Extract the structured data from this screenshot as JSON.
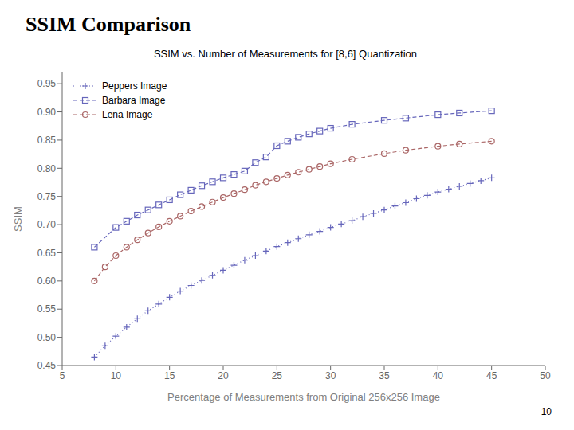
{
  "chart_data": {
    "type": "line",
    "title": "SSIM Comparison",
    "subtitle": "SSIM vs. Number of Measurements for [8,6] Quantization",
    "annotations": [
      "10"
    ],
    "xlabel": "Percentage of Measurements from Original 256x256 Image",
    "ylabel": "SSIM",
    "xlim": [
      5,
      50
    ],
    "ylim": [
      0.45,
      0.97
    ],
    "xticks": [
      5,
      10,
      15,
      20,
      25,
      30,
      35,
      40,
      45,
      50
    ],
    "yticks": [
      0.45,
      {
        "value": 0.5,
        "label": "0.50"
      },
      0.55,
      {
        "value": 0.6,
        "label": "0.60"
      },
      0.65,
      {
        "value": 0.7,
        "label": "0.70"
      },
      0.75,
      {
        "value": 0.8,
        "label": "0.80"
      },
      0.85,
      {
        "value": 0.9,
        "label": "0.90"
      },
      0.95
    ],
    "grid": false,
    "legend": "upper left",
    "series": [
      {
        "name": "Peppers Image",
        "color": "#6666bb",
        "marker": "plus",
        "line_style": "dotted",
        "x": [
          8,
          9,
          10,
          11,
          12,
          13,
          14,
          15,
          16,
          17,
          18,
          19,
          20,
          21,
          22,
          23,
          24,
          25,
          26,
          27,
          28,
          29,
          30,
          31,
          32,
          33,
          34,
          35,
          36,
          37,
          38,
          39,
          40,
          41,
          42,
          43,
          44,
          45
        ],
        "values": [
          0.465,
          0.485,
          0.502,
          0.518,
          0.533,
          0.547,
          0.559,
          0.571,
          0.582,
          0.592,
          0.601,
          0.61,
          0.619,
          0.628,
          0.637,
          0.645,
          0.653,
          0.661,
          0.668,
          0.675,
          0.682,
          0.688,
          0.695,
          0.701,
          0.707,
          0.714,
          0.72,
          0.726,
          0.733,
          0.739,
          0.746,
          0.752,
          0.758,
          0.763,
          0.768,
          0.773,
          0.778,
          0.783
        ]
      },
      {
        "name": "Barbara Image",
        "color": "#6666bb",
        "marker": "square",
        "line_style": "dashed",
        "x": [
          8,
          10,
          11,
          12,
          13,
          14,
          15,
          16,
          17,
          18,
          19,
          20,
          21,
          22,
          23,
          24,
          25,
          26,
          27,
          28,
          29,
          30,
          32,
          35,
          37,
          40,
          42,
          45
        ],
        "values": [
          0.66,
          0.695,
          0.706,
          0.717,
          0.726,
          0.735,
          0.744,
          0.753,
          0.761,
          0.769,
          0.776,
          0.783,
          0.789,
          0.795,
          0.81,
          0.82,
          0.84,
          0.848,
          0.855,
          0.861,
          0.866,
          0.871,
          0.878,
          0.885,
          0.889,
          0.895,
          0.898,
          0.902
        ]
      },
      {
        "name": "Lena Image",
        "color": "#aa6666",
        "marker": "circle",
        "line_style": "dashed",
        "x": [
          8,
          9,
          10,
          11,
          12,
          13,
          14,
          15,
          16,
          17,
          18,
          19,
          20,
          21,
          22,
          23,
          24,
          25,
          26,
          27,
          28,
          29,
          30,
          32,
          35,
          37,
          40,
          42,
          45
        ],
        "values": [
          0.6,
          0.625,
          0.645,
          0.66,
          0.673,
          0.685,
          0.696,
          0.706,
          0.715,
          0.724,
          0.732,
          0.74,
          0.748,
          0.755,
          0.762,
          0.77,
          0.776,
          0.782,
          0.788,
          0.793,
          0.798,
          0.803,
          0.808,
          0.816,
          0.826,
          0.832,
          0.839,
          0.843,
          0.848
        ]
      }
    ]
  }
}
